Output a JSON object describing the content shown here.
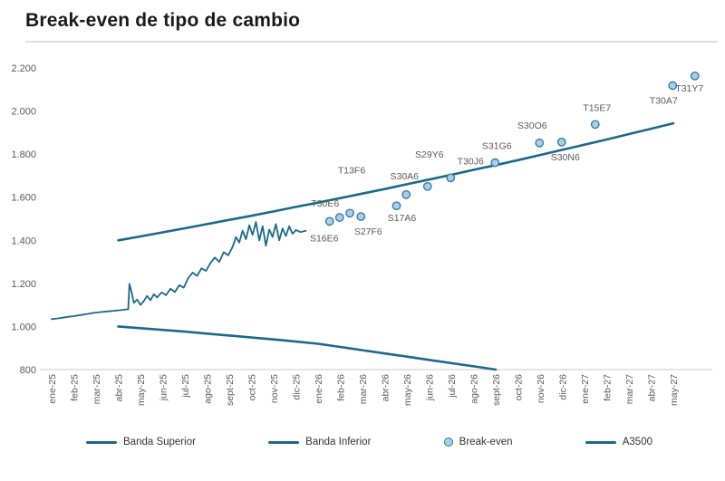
{
  "title": "Break-even de tipo de cambio",
  "colors": {
    "line": "#1b6a8c",
    "dot_fill": "#a9cfe5",
    "dot_stroke": "#2e75a3",
    "axis_text": "#595959",
    "label_text": "#595959",
    "axis_line": "#c9c9c9",
    "title_text": "#1a1a1a",
    "rule": "#dcdcdc"
  },
  "legend": [
    {
      "label": "Banda Superior",
      "type": "line"
    },
    {
      "label": "Banda Inferior",
      "type": "line"
    },
    {
      "label": "Break-even",
      "type": "dot"
    },
    {
      "label": "A3500",
      "type": "line"
    }
  ],
  "chart_data": {
    "type": "line",
    "title": "Break-even de tipo de cambio",
    "xlabel": "",
    "ylabel": "",
    "ylim": [
      800,
      2200
    ],
    "grid": false,
    "legend_position": "bottom",
    "x_categories": [
      "ene-25",
      "feb-25",
      "mar-25",
      "abr-25",
      "may-25",
      "jun-25",
      "jul-25",
      "ago-25",
      "sept-25",
      "oct-25",
      "nov-25",
      "dic-25",
      "ene-26",
      "feb-26",
      "mar-26",
      "abr-26",
      "may-26",
      "jun-26",
      "jul-26",
      "ago-26",
      "sept-26",
      "oct-26",
      "nov-26",
      "dic-26",
      "ene-27",
      "feb-27",
      "mar-27",
      "abr-27",
      "may-27"
    ],
    "y_ticks": [
      {
        "value": 800,
        "label": "800"
      },
      {
        "value": 1000,
        "label": "1.000"
      },
      {
        "value": 1200,
        "label": "1.200"
      },
      {
        "value": 1400,
        "label": "1.400"
      },
      {
        "value": 1600,
        "label": "1.600"
      },
      {
        "value": 1800,
        "label": "1.800"
      },
      {
        "value": 2000,
        "label": "2.000"
      },
      {
        "value": 2200,
        "label": "2.200"
      }
    ],
    "series": [
      {
        "name": "Banda Superior",
        "x_start_index": 3,
        "stroke_width": 2.6,
        "values": [
          1400,
          1418,
          1437,
          1456,
          1475,
          1495,
          1514,
          1534,
          1555,
          1575,
          1596,
          1617,
          1638,
          1660,
          1682,
          1704,
          1727,
          1749,
          1772,
          1796,
          1820,
          1844,
          1868,
          1893,
          1918,
          1943
        ]
      },
      {
        "name": "Banda Inferior",
        "x_start_index": 3,
        "stroke_width": 2.6,
        "values": [
          1000,
          992,
          984,
          976,
          967,
          958,
          949,
          940,
          930,
          920,
          905,
          890,
          875,
          860,
          845,
          830,
          815,
          800
        ]
      },
      {
        "name": "A3500",
        "stroke_width": 1.8,
        "points": [
          [
            0,
            1034
          ],
          [
            0.25,
            1037
          ],
          [
            0.5,
            1041
          ],
          [
            0.75,
            1045
          ],
          [
            1,
            1048
          ],
          [
            1.3,
            1053
          ],
          [
            1.6,
            1058
          ],
          [
            1.9,
            1063
          ],
          [
            2.2,
            1067
          ],
          [
            2.5,
            1070
          ],
          [
            2.8,
            1073
          ],
          [
            3.1,
            1076
          ],
          [
            3.35,
            1079
          ],
          [
            3.45,
            1080
          ],
          [
            3.5,
            1198
          ],
          [
            3.6,
            1160
          ],
          [
            3.7,
            1110
          ],
          [
            3.85,
            1125
          ],
          [
            4,
            1100
          ],
          [
            4.15,
            1118
          ],
          [
            4.3,
            1142
          ],
          [
            4.45,
            1122
          ],
          [
            4.6,
            1150
          ],
          [
            4.75,
            1135
          ],
          [
            4.95,
            1158
          ],
          [
            5.15,
            1145
          ],
          [
            5.35,
            1175
          ],
          [
            5.55,
            1160
          ],
          [
            5.75,
            1192
          ],
          [
            5.95,
            1180
          ],
          [
            6.15,
            1225
          ],
          [
            6.35,
            1250
          ],
          [
            6.55,
            1235
          ],
          [
            6.75,
            1270
          ],
          [
            6.95,
            1258
          ],
          [
            7.15,
            1295
          ],
          [
            7.35,
            1320
          ],
          [
            7.55,
            1300
          ],
          [
            7.75,
            1345
          ],
          [
            7.95,
            1330
          ],
          [
            8.15,
            1370
          ],
          [
            8.3,
            1415
          ],
          [
            8.45,
            1390
          ],
          [
            8.6,
            1445
          ],
          [
            8.75,
            1405
          ],
          [
            8.9,
            1470
          ],
          [
            9.05,
            1425
          ],
          [
            9.2,
            1485
          ],
          [
            9.35,
            1400
          ],
          [
            9.5,
            1465
          ],
          [
            9.65,
            1375
          ],
          [
            9.8,
            1450
          ],
          [
            9.95,
            1415
          ],
          [
            10.1,
            1475
          ],
          [
            10.25,
            1400
          ],
          [
            10.4,
            1455
          ],
          [
            10.55,
            1420
          ],
          [
            10.7,
            1465
          ],
          [
            10.85,
            1430
          ],
          [
            11,
            1448
          ],
          [
            11.2,
            1438
          ],
          [
            11.45,
            1444
          ]
        ]
      }
    ],
    "break_even_points": [
      {
        "label": "S16E6",
        "x": 12.52,
        "value": 1488,
        "label_offset": [
          -6,
          22
        ]
      },
      {
        "label": "T30E6",
        "x": 12.97,
        "value": 1506,
        "label_offset": [
          -16,
          -12
        ]
      },
      {
        "label": "T13F6",
        "x": 13.43,
        "value": 1526,
        "label_offset": [
          2,
          -44
        ]
      },
      {
        "label": "S27F6",
        "x": 13.93,
        "value": 1510,
        "label_offset": [
          8,
          20
        ]
      },
      {
        "label": "S17A6",
        "x": 15.53,
        "value": 1560,
        "label_offset": [
          6,
          17
        ]
      },
      {
        "label": "S30A6",
        "x": 15.97,
        "value": 1612,
        "label_offset": [
          -2,
          -17
        ]
      },
      {
        "label": "S29Y6",
        "x": 16.93,
        "value": 1650,
        "label_offset": [
          2,
          -32
        ]
      },
      {
        "label": "T30J6",
        "x": 17.97,
        "value": 1690,
        "label_offset": [
          22,
          -15
        ]
      },
      {
        "label": "S31G6",
        "x": 19.97,
        "value": 1760,
        "label_offset": [
          2,
          -15
        ]
      },
      {
        "label": "S30O6",
        "x": 21.97,
        "value": 1852,
        "label_offset": [
          -8,
          -16
        ]
      },
      {
        "label": "S30N6",
        "x": 22.97,
        "value": 1856,
        "label_offset": [
          4,
          20
        ]
      },
      {
        "label": "T15E7",
        "x": 24.48,
        "value": 1938,
        "label_offset": [
          2,
          -15
        ]
      },
      {
        "label": "T30A7",
        "x": 27.97,
        "value": 2118,
        "label_offset": [
          -10,
          20
        ]
      },
      {
        "label": "T31Y7",
        "x": 28.97,
        "value": 2163,
        "label_offset": [
          -6,
          17
        ]
      }
    ]
  }
}
